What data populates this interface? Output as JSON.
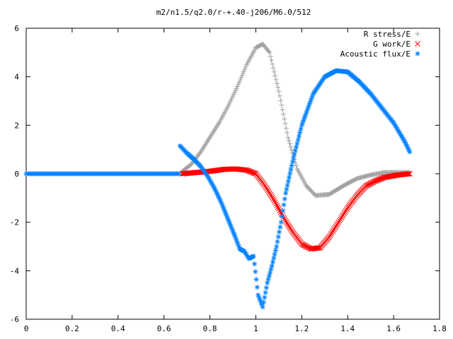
{
  "chart_data": {
    "type": "scatter",
    "title": "m2/n1.5/q2.0/r-+.40-j206/M6.0/512",
    "xlabel": "",
    "ylabel": "",
    "xlim": [
      0,
      1.8
    ],
    "ylim": [
      -6,
      6
    ],
    "x_ticks": [
      "0",
      "0.2",
      "0.4",
      "0.6",
      "0.8",
      "1",
      "1.2",
      "1.4",
      "1.6",
      "1.8"
    ],
    "y_ticks": [
      "6",
      "4",
      "2",
      "0",
      "-2",
      "-4",
      "-6"
    ],
    "x_tick_values": [
      0,
      0.2,
      0.4,
      0.6,
      0.8,
      1.0,
      1.2,
      1.4,
      1.6,
      1.8
    ],
    "y_tick_values": [
      6,
      4,
      2,
      0,
      -2,
      -4,
      -6
    ],
    "grid": false,
    "legend_position": "top-right",
    "series": [
      {
        "name": "R stress/E",
        "marker": "plus",
        "color": "#a0a0a0",
        "points": [
          [
            0.68,
            0.1
          ],
          [
            0.72,
            0.4
          ],
          [
            0.76,
            0.9
          ],
          [
            0.8,
            1.5
          ],
          [
            0.84,
            2.1
          ],
          [
            0.88,
            2.8
          ],
          [
            0.92,
            3.6
          ],
          [
            0.96,
            4.5
          ],
          [
            1.0,
            5.2
          ],
          [
            1.03,
            5.35
          ],
          [
            1.06,
            5.0
          ],
          [
            1.1,
            3.4
          ],
          [
            1.14,
            1.5
          ],
          [
            1.18,
            0.2
          ],
          [
            1.22,
            -0.5
          ],
          [
            1.26,
            -0.9
          ],
          [
            1.32,
            -0.85
          ],
          [
            1.38,
            -0.5
          ],
          [
            1.44,
            -0.2
          ],
          [
            1.5,
            -0.05
          ],
          [
            1.56,
            0.05
          ],
          [
            1.62,
            0.05
          ],
          [
            1.67,
            0.05
          ]
        ]
      },
      {
        "name": "G work/E",
        "marker": "cross",
        "color": "#ff0000",
        "points": [
          [
            0.68,
            0.0
          ],
          [
            0.74,
            0.05
          ],
          [
            0.8,
            0.1
          ],
          [
            0.86,
            0.18
          ],
          [
            0.91,
            0.2
          ],
          [
            0.96,
            0.15
          ],
          [
            1.0,
            0.0
          ],
          [
            1.04,
            -0.5
          ],
          [
            1.08,
            -1.1
          ],
          [
            1.12,
            -1.8
          ],
          [
            1.16,
            -2.4
          ],
          [
            1.2,
            -2.9
          ],
          [
            1.24,
            -3.1
          ],
          [
            1.28,
            -3.05
          ],
          [
            1.32,
            -2.6
          ],
          [
            1.36,
            -2.0
          ],
          [
            1.4,
            -1.4
          ],
          [
            1.44,
            -0.9
          ],
          [
            1.48,
            -0.5
          ],
          [
            1.52,
            -0.3
          ],
          [
            1.56,
            -0.15
          ],
          [
            1.62,
            -0.05
          ],
          [
            1.67,
            0.0
          ]
        ]
      },
      {
        "name": "Acoustic flux/E",
        "marker": "star",
        "color": "#0080ff",
        "points": [
          [
            0.67,
            1.15
          ],
          [
            0.7,
            0.85
          ],
          [
            0.73,
            0.6
          ],
          [
            0.76,
            0.3
          ],
          [
            0.79,
            -0.1
          ],
          [
            0.82,
            -0.6
          ],
          [
            0.85,
            -1.2
          ],
          [
            0.88,
            -1.9
          ],
          [
            0.91,
            -2.6
          ],
          [
            0.93,
            -3.1
          ],
          [
            0.95,
            -3.2
          ],
          [
            0.97,
            -3.5
          ],
          [
            0.99,
            -3.4
          ],
          [
            1.01,
            -5.0
          ],
          [
            1.03,
            -5.5
          ],
          [
            1.05,
            -4.5
          ],
          [
            1.07,
            -3.8
          ],
          [
            1.09,
            -3.0
          ],
          [
            1.11,
            -2.0
          ],
          [
            1.13,
            -0.8
          ],
          [
            1.16,
            0.5
          ],
          [
            1.2,
            2.0
          ],
          [
            1.25,
            3.3
          ],
          [
            1.3,
            4.0
          ],
          [
            1.35,
            4.25
          ],
          [
            1.4,
            4.2
          ],
          [
            1.45,
            3.8
          ],
          [
            1.5,
            3.3
          ],
          [
            1.55,
            2.7
          ],
          [
            1.6,
            2.1
          ],
          [
            1.65,
            1.3
          ],
          [
            1.67,
            0.9
          ]
        ]
      }
    ],
    "flat_segment": {
      "x_start": 0.0,
      "x_end": 0.67,
      "y": 0.0
    }
  }
}
